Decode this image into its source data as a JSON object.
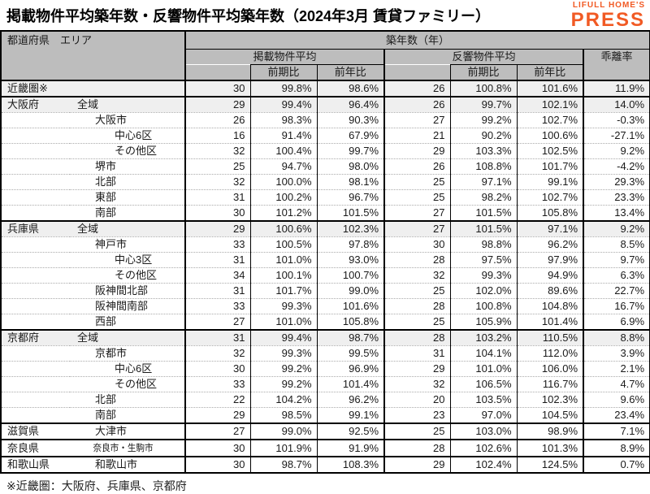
{
  "title": "掲載物件平均築年数・反響物件平均築年数（2024年3月 賃貸ファミリー）",
  "logo": {
    "top": "LIFULL HOME'S",
    "bottom": "PRESS",
    "color": "#F15A24"
  },
  "footnote": "※近畿圏：大阪府、兵庫県、京都府",
  "colors": {
    "header_bg": "#bdbdbd",
    "shaded_row_bg": "#efefef",
    "border": "#000000",
    "logo_orange": "#F15A24"
  },
  "table_header": {
    "pref_area": "都道府県　エリア",
    "age_group": "築年数（年）",
    "listed_group": "掲載物件平均",
    "response_group": "反響物件平均",
    "divergence": "乖離率",
    "prev_period": "前期比",
    "prev_year": "前年比"
  },
  "chart_data": {
    "type": "table",
    "title": "掲載物件平均築年数・反響物件平均築年数（2024年3月 賃貸ファミリー）",
    "columns": [
      "都道府県",
      "エリア",
      "掲載物件平均 築年数(年)",
      "掲載 前期比",
      "掲載 前年比",
      "反響物件平均 築年数(年)",
      "反響 前期比",
      "反響 前年比",
      "乖離率"
    ],
    "rows": [
      {
        "pref": "近畿圏※",
        "area": "",
        "indent": 0,
        "shaded": true,
        "section_end": true,
        "values": [
          "30",
          "99.8%",
          "98.6%",
          "26",
          "100.8%",
          "101.6%",
          "11.9%"
        ]
      },
      {
        "pref": "大阪府",
        "area": "全域",
        "indent": 1,
        "shaded": true,
        "section_end": false,
        "values": [
          "29",
          "99.4%",
          "96.4%",
          "26",
          "99.7%",
          "102.1%",
          "14.0%"
        ]
      },
      {
        "pref": "",
        "area": "大阪市",
        "indent": 2,
        "shaded": false,
        "section_end": false,
        "values": [
          "26",
          "98.3%",
          "90.3%",
          "27",
          "99.2%",
          "102.7%",
          "-0.3%"
        ]
      },
      {
        "pref": "",
        "area": "中心6区",
        "indent": 3,
        "shaded": false,
        "section_end": false,
        "values": [
          "16",
          "91.4%",
          "67.9%",
          "21",
          "90.2%",
          "100.6%",
          "-27.1%"
        ]
      },
      {
        "pref": "",
        "area": "その他区",
        "indent": 3,
        "shaded": false,
        "section_end": false,
        "values": [
          "32",
          "100.4%",
          "99.7%",
          "29",
          "103.3%",
          "102.5%",
          "9.2%"
        ]
      },
      {
        "pref": "",
        "area": "堺市",
        "indent": 2,
        "shaded": false,
        "section_end": false,
        "values": [
          "25",
          "94.7%",
          "98.0%",
          "26",
          "108.8%",
          "101.7%",
          "-4.2%"
        ]
      },
      {
        "pref": "",
        "area": "北部",
        "indent": 2,
        "shaded": false,
        "section_end": false,
        "values": [
          "32",
          "100.0%",
          "98.1%",
          "25",
          "97.1%",
          "99.1%",
          "29.3%"
        ]
      },
      {
        "pref": "",
        "area": "東部",
        "indent": 2,
        "shaded": false,
        "section_end": false,
        "values": [
          "31",
          "100.2%",
          "96.7%",
          "25",
          "98.2%",
          "102.7%",
          "23.3%"
        ]
      },
      {
        "pref": "",
        "area": "南部",
        "indent": 2,
        "shaded": false,
        "section_end": true,
        "values": [
          "30",
          "101.2%",
          "101.5%",
          "27",
          "101.5%",
          "105.8%",
          "13.4%"
        ]
      },
      {
        "pref": "兵庫県",
        "area": "全域",
        "indent": 1,
        "shaded": true,
        "section_end": false,
        "values": [
          "29",
          "100.6%",
          "102.3%",
          "27",
          "101.5%",
          "97.1%",
          "9.2%"
        ]
      },
      {
        "pref": "",
        "area": "神戸市",
        "indent": 2,
        "shaded": false,
        "section_end": false,
        "values": [
          "33",
          "100.5%",
          "97.8%",
          "30",
          "98.8%",
          "96.2%",
          "8.5%"
        ]
      },
      {
        "pref": "",
        "area": "中心3区",
        "indent": 3,
        "shaded": false,
        "section_end": false,
        "values": [
          "31",
          "101.0%",
          "93.0%",
          "28",
          "97.5%",
          "97.9%",
          "9.7%"
        ]
      },
      {
        "pref": "",
        "area": "その他区",
        "indent": 3,
        "shaded": false,
        "section_end": false,
        "values": [
          "34",
          "100.1%",
          "100.7%",
          "32",
          "99.3%",
          "94.9%",
          "6.3%"
        ]
      },
      {
        "pref": "",
        "area": "阪神間北部",
        "indent": 2,
        "shaded": false,
        "section_end": false,
        "values": [
          "31",
          "101.7%",
          "99.0%",
          "25",
          "102.0%",
          "89.6%",
          "22.7%"
        ]
      },
      {
        "pref": "",
        "area": "阪神間南部",
        "indent": 2,
        "shaded": false,
        "section_end": false,
        "values": [
          "33",
          "99.3%",
          "101.6%",
          "28",
          "100.8%",
          "104.8%",
          "16.7%"
        ]
      },
      {
        "pref": "",
        "area": "西部",
        "indent": 2,
        "shaded": false,
        "section_end": true,
        "values": [
          "27",
          "101.0%",
          "105.8%",
          "25",
          "105.9%",
          "101.4%",
          "6.9%"
        ]
      },
      {
        "pref": "京都府",
        "area": "全域",
        "indent": 1,
        "shaded": true,
        "section_end": false,
        "values": [
          "31",
          "99.4%",
          "98.7%",
          "28",
          "103.2%",
          "110.5%",
          "8.8%"
        ]
      },
      {
        "pref": "",
        "area": "京都市",
        "indent": 2,
        "shaded": false,
        "section_end": false,
        "values": [
          "32",
          "99.3%",
          "99.5%",
          "31",
          "104.1%",
          "112.0%",
          "3.9%"
        ]
      },
      {
        "pref": "",
        "area": "中心6区",
        "indent": 3,
        "shaded": false,
        "section_end": false,
        "values": [
          "30",
          "99.2%",
          "96.9%",
          "29",
          "101.0%",
          "106.0%",
          "2.1%"
        ]
      },
      {
        "pref": "",
        "area": "その他区",
        "indent": 3,
        "shaded": false,
        "section_end": false,
        "values": [
          "33",
          "99.2%",
          "101.4%",
          "32",
          "106.5%",
          "116.7%",
          "4.7%"
        ]
      },
      {
        "pref": "",
        "area": "北部",
        "indent": 2,
        "shaded": false,
        "section_end": false,
        "values": [
          "22",
          "104.2%",
          "96.2%",
          "20",
          "103.5%",
          "102.3%",
          "9.6%"
        ]
      },
      {
        "pref": "",
        "area": "南部",
        "indent": 2,
        "shaded": false,
        "section_end": true,
        "values": [
          "29",
          "98.5%",
          "99.1%",
          "23",
          "97.0%",
          "104.5%",
          "23.4%"
        ]
      },
      {
        "pref": "滋賀県",
        "area": "大津市",
        "indent": 2,
        "shaded": false,
        "section_end": true,
        "values": [
          "27",
          "99.0%",
          "92.5%",
          "25",
          "103.0%",
          "98.9%",
          "7.1%"
        ]
      },
      {
        "pref": "奈良県",
        "area": "奈良市・生駒市",
        "indent": 2,
        "shaded": false,
        "section_end": true,
        "condensed": true,
        "values": [
          "30",
          "101.9%",
          "91.9%",
          "28",
          "102.6%",
          "101.3%",
          "8.9%"
        ]
      },
      {
        "pref": "和歌山県",
        "area": "和歌山市",
        "indent": 2,
        "shaded": false,
        "section_end": true,
        "values": [
          "30",
          "98.7%",
          "108.3%",
          "29",
          "102.4%",
          "124.5%",
          "0.7%"
        ]
      }
    ]
  }
}
